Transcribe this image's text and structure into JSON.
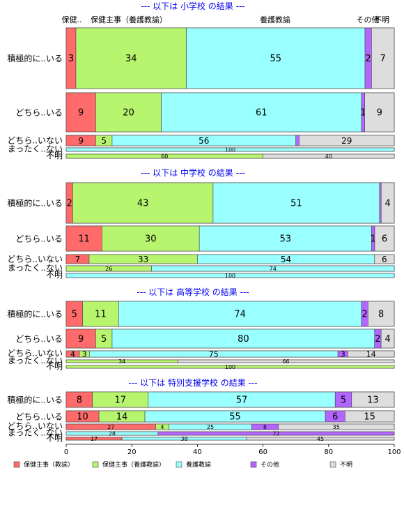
{
  "chart_data": {
    "type": "bar",
    "orientation": "horizontal",
    "stacked": true,
    "xlim": [
      0,
      100
    ],
    "x_ticks": [
      "0",
      "20",
      "40",
      "60",
      "80",
      "100"
    ],
    "header_labels": [
      "保健..",
      "保健主事（養護教諭）",
      "養護教諭",
      "その他",
      "不明"
    ],
    "legend": [
      {
        "name": "保健主事（教諭）",
        "color": "#ff6b6b"
      },
      {
        "name": "保健主事（養護教諭）",
        "color": "#b8f56e"
      },
      {
        "name": "養護教諭",
        "color": "#99ffff"
      },
      {
        "name": "その他",
        "color": "#b366ff"
      },
      {
        "name": "不明",
        "color": "#dddddd"
      }
    ],
    "panels": [
      {
        "title": "--- 以下は 小学校 の結果 ---",
        "rows": [
          {
            "label": "積極的に..いる",
            "values": [
              3,
              34,
              55,
              2,
              7
            ],
            "labels": [
              "3",
              "34",
              "55",
              "2",
              "7"
            ]
          },
          {
            "label": "どちら..いる",
            "values": [
              9,
              20,
              61,
              1,
              9
            ],
            "labels": [
              "9",
              "20",
              "61",
              "1",
              "9"
            ]
          },
          {
            "label": "どちら..いない",
            "values": [
              9,
              5,
              56,
              1,
              29
            ],
            "labels": [
              "9",
              "5",
              "56",
              "",
              "29"
            ]
          },
          {
            "label": "まったく..ない",
            "values": [
              0,
              0,
              100,
              0,
              0
            ],
            "labels": [
              "",
              "",
              "100",
              "",
              ""
            ]
          },
          {
            "label": "不明",
            "values": [
              0,
              60,
              0,
              0,
              40
            ],
            "labels": [
              "",
              "60",
              "",
              "",
              "40"
            ]
          }
        ]
      },
      {
        "title": "--- 以下は 中学校 の結果 ---",
        "rows": [
          {
            "label": "積極的に..いる",
            "values": [
              2,
              43,
              51,
              0.5,
              4
            ],
            "labels": [
              "2",
              "43",
              "51",
              "",
              "4"
            ]
          },
          {
            "label": "どちら..いる",
            "values": [
              11,
              30,
              53,
              1,
              6
            ],
            "labels": [
              "11",
              "30",
              "53",
              "1",
              "6"
            ]
          },
          {
            "label": "どちら..いない",
            "values": [
              7,
              33,
              54,
              0,
              6
            ],
            "labels": [
              "7",
              "33",
              "54",
              "",
              "6"
            ]
          },
          {
            "label": "まったく..ない",
            "values": [
              0,
              26,
              74,
              0,
              0
            ],
            "labels": [
              "",
              "26",
              "74",
              "",
              ""
            ]
          },
          {
            "label": "不明",
            "values": [
              0,
              0,
              100,
              0,
              0
            ],
            "labels": [
              "",
              "",
              "100",
              "",
              ""
            ]
          }
        ]
      },
      {
        "title": "--- 以下は 高等学校 の結果 ---",
        "rows": [
          {
            "label": "積極的に..いる",
            "values": [
              5,
              11,
              74,
              2,
              8
            ],
            "labels": [
              "5",
              "11",
              "74",
              "2",
              "8"
            ]
          },
          {
            "label": "どちら..いる",
            "values": [
              9,
              5,
              80,
              2,
              4
            ],
            "labels": [
              "9",
              "5",
              "80",
              "2",
              "4"
            ]
          },
          {
            "label": "どちら..いない",
            "values": [
              4,
              3,
              75,
              3,
              14
            ],
            "labels": [
              "4",
              "3",
              "75",
              "3",
              "14"
            ]
          },
          {
            "label": "まったく..ない",
            "values": [
              0,
              34,
              0,
              0,
              66
            ],
            "labels": [
              "",
              "34",
              "",
              "",
              "66"
            ]
          },
          {
            "label": "不明",
            "values": [
              0,
              100,
              0,
              0,
              0
            ],
            "labels": [
              "",
              "100",
              "",
              "",
              ""
            ]
          }
        ]
      },
      {
        "title": "--- 以下は 特別支援学校 の結果 ---",
        "rows": [
          {
            "label": "積極的に..いる",
            "values": [
              8,
              17,
              57,
              5,
              13
            ],
            "labels": [
              "8",
              "17",
              "57",
              "5",
              "13"
            ]
          },
          {
            "label": "どちら..いる",
            "values": [
              10,
              14,
              55,
              6,
              15
            ],
            "labels": [
              "10",
              "14",
              "55",
              "6",
              "15"
            ]
          },
          {
            "label": "どちら..いない",
            "values": [
              27,
              4,
              25,
              8,
              35
            ],
            "labels": [
              "27",
              "4",
              "25",
              "8",
              "35"
            ]
          },
          {
            "label": "まったく..ない",
            "values": [
              0,
              0,
              28,
              72,
              0
            ],
            "labels": [
              "",
              "",
              "28",
              "72",
              ""
            ]
          },
          {
            "label": "不明",
            "values": [
              17,
              0,
              38,
              0,
              45
            ],
            "labels": [
              "17",
              "",
              "38",
              "",
              "45"
            ]
          }
        ]
      }
    ]
  }
}
